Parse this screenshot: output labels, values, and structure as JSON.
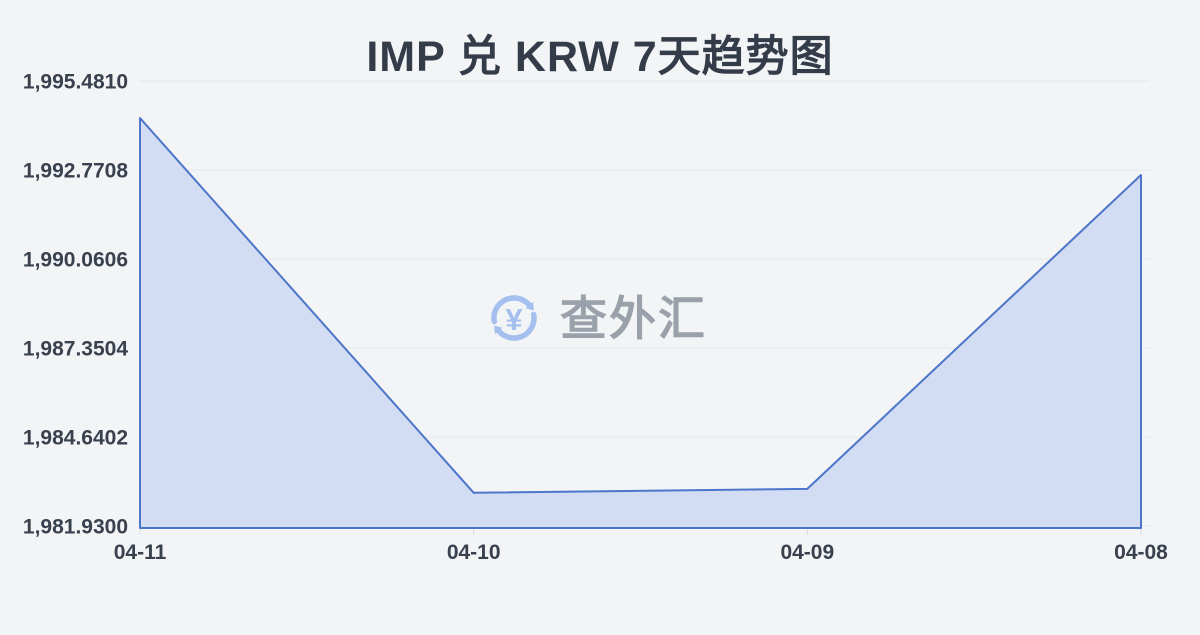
{
  "page": {
    "background": "#f3f4f6"
  },
  "chart_data": {
    "type": "area",
    "title": "IMP 兑 KRW 7天趋势图",
    "categories": [
      "04-11",
      "04-10",
      "04-09",
      "04-08"
    ],
    "values": [
      1994.35,
      1982.94,
      1983.06,
      1992.62
    ],
    "y_ticks": [
      "1,995.4810",
      "1,992.7708",
      "1,990.0606",
      "1,987.3504",
      "1,984.6402",
      "1,981.9300"
    ],
    "y_tick_values": [
      1995.481,
      1992.7708,
      1990.0606,
      1987.3504,
      1984.6402,
      1981.93
    ],
    "ylim": [
      1981.93,
      1995.481
    ],
    "xlabel": "",
    "ylabel": "",
    "grid": true,
    "legend": "none",
    "colors": {
      "line": "#4b76ca",
      "fill": "#d2dcf3",
      "grid": "#e4e6ea",
      "tick": "#d8dbe0",
      "axis_label": "#39404e"
    }
  },
  "watermark": {
    "icon": "currency-exchange-icon",
    "icon_symbol": "¥",
    "text": "查外汇",
    "icon_color": "#a5c0ef",
    "text_color": "#9aa1ab"
  }
}
